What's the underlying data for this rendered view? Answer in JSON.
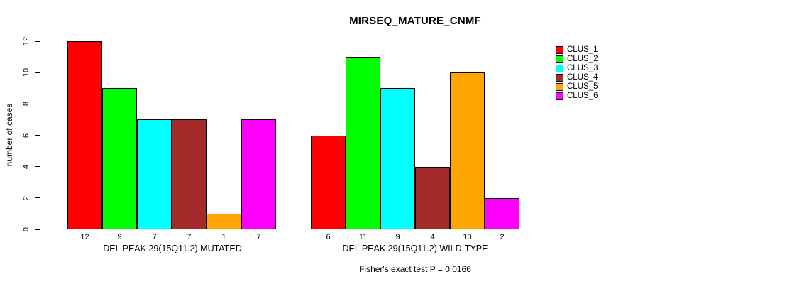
{
  "title": "MIRSEQ_MATURE_CNMF",
  "y_axis": {
    "label": "number of cases",
    "ticks": [
      0,
      2,
      4,
      6,
      8,
      10,
      12
    ]
  },
  "legend": {
    "items": [
      {
        "label": "CLUS_1",
        "color": "#FF0000"
      },
      {
        "label": "CLUS_2",
        "color": "#00FF00"
      },
      {
        "label": "CLUS_3",
        "color": "#00FFFF"
      },
      {
        "label": "CLUS_4",
        "color": "#A52A2A"
      },
      {
        "label": "CLUS_5",
        "color": "#FFA500"
      },
      {
        "label": "CLUS_6",
        "color": "#FF00FF"
      }
    ]
  },
  "footnote": "Fisher's exact test P = 0.0166",
  "chart_data": {
    "type": "bar",
    "title": "MIRSEQ_MATURE_CNMF",
    "xlabel": "",
    "ylabel": "number of cases",
    "ylim": [
      0,
      12
    ],
    "yticks": [
      0,
      2,
      4,
      6,
      8,
      10,
      12
    ],
    "grid": false,
    "legend_position": "right",
    "bar_value_labels": true,
    "categories": [
      "CLUS_1",
      "CLUS_2",
      "CLUS_3",
      "CLUS_4",
      "CLUS_5",
      "CLUS_6"
    ],
    "colors": [
      "#FF0000",
      "#00FF00",
      "#00FFFF",
      "#A52A2A",
      "#FFA500",
      "#FF00FF"
    ],
    "groups": [
      {
        "label": "DEL PEAK 29(15Q11.2) MUTATED",
        "values": [
          12,
          9,
          7,
          7,
          1,
          7
        ]
      },
      {
        "label": "DEL PEAK 29(15Q11.2) WILD-TYPE",
        "values": [
          6,
          11,
          9,
          4,
          10,
          2
        ]
      }
    ],
    "annotation": "Fisher's exact test P = 0.0166"
  }
}
